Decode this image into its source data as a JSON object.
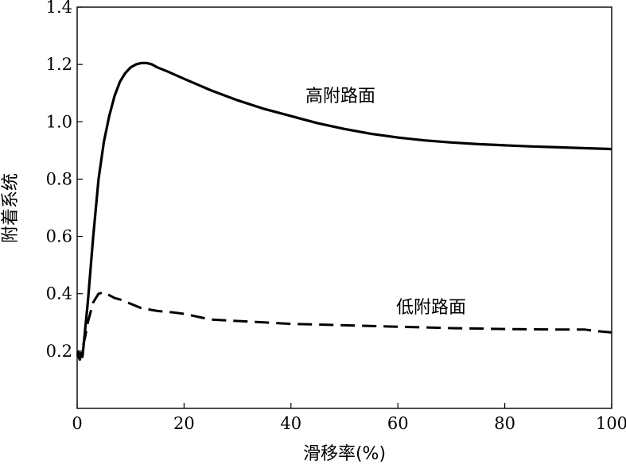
{
  "chart_data": {
    "type": "line",
    "title": "",
    "xlabel": "滑移率(%)",
    "ylabel": "附着系统",
    "xlim": [
      0,
      100
    ],
    "ylim": [
      0,
      1.4
    ],
    "x_ticks": [
      0,
      20,
      40,
      60,
      80,
      100
    ],
    "x_tick_labels": [
      "0",
      "20",
      "40",
      "60",
      "80",
      "100"
    ],
    "y_ticks": [
      0.2,
      0.4,
      0.6,
      0.8,
      1.0,
      1.2,
      1.4
    ],
    "y_tick_labels": [
      "0.2",
      "0.4",
      "0.6",
      "0.8",
      "1.0",
      "1.2",
      "1.4"
    ],
    "grid": false,
    "legend": "none",
    "series": [
      {
        "name": "高附路面",
        "line_style": "solid",
        "color": "#000000",
        "x": [
          0,
          1,
          2,
          3,
          4,
          5,
          6,
          7,
          8,
          9,
          10,
          11,
          12,
          13,
          14,
          15,
          17,
          20,
          25,
          30,
          35,
          40,
          45,
          50,
          55,
          60,
          65,
          70,
          75,
          80,
          85,
          90,
          95,
          100
        ],
        "y": [
          0.2,
          0.18,
          0.37,
          0.6,
          0.8,
          0.93,
          1.02,
          1.09,
          1.14,
          1.17,
          1.19,
          1.2,
          1.205,
          1.205,
          1.2,
          1.19,
          1.175,
          1.15,
          1.11,
          1.075,
          1.045,
          1.02,
          0.995,
          0.975,
          0.958,
          0.945,
          0.935,
          0.928,
          0.922,
          0.918,
          0.914,
          0.911,
          0.908,
          0.905
        ]
      },
      {
        "name": "低附路面",
        "line_style": "dashed",
        "color": "#000000",
        "x": [
          0,
          0.5,
          1,
          1.5,
          2,
          3,
          4,
          5,
          6,
          7,
          8,
          10,
          12,
          15,
          18,
          20,
          25,
          30,
          35,
          40,
          50,
          60,
          70,
          80,
          90,
          95,
          97,
          100
        ],
        "y": [
          0.19,
          0.17,
          0.21,
          0.25,
          0.3,
          0.37,
          0.4,
          0.405,
          0.395,
          0.385,
          0.38,
          0.365,
          0.35,
          0.34,
          0.335,
          0.33,
          0.31,
          0.305,
          0.3,
          0.295,
          0.29,
          0.285,
          0.28,
          0.277,
          0.275,
          0.275,
          0.27,
          0.265
        ]
      }
    ]
  }
}
